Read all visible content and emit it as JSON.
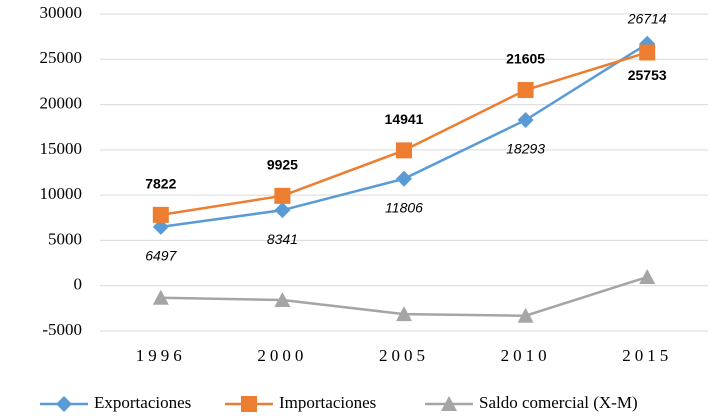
{
  "chart_data": {
    "type": "line",
    "categories": [
      "1996",
      "2000",
      "2005",
      "2010",
      "2015"
    ],
    "series": [
      {
        "name": "Exportaciones",
        "color": "#5b9bd5",
        "marker": "diamond",
        "labels": true,
        "values": [
          6497,
          8341,
          11806,
          18293,
          26714
        ]
      },
      {
        "name": "Importaciones",
        "color": "#ed7d31",
        "marker": "square",
        "labels": true,
        "values": [
          7822,
          9925,
          14941,
          21605,
          25753
        ]
      },
      {
        "name": "Saldo comercial (X-M)",
        "color": "#a5a5a5",
        "marker": "triangle",
        "labels": false,
        "values": [
          -1325,
          -1584,
          -3135,
          -3312,
          961
        ]
      }
    ],
    "ylim": [
      -5000,
      30000
    ],
    "yticks": [
      -5000,
      0,
      5000,
      10000,
      15000,
      20000,
      25000,
      30000
    ],
    "grid": true,
    "legend": "bottom"
  }
}
